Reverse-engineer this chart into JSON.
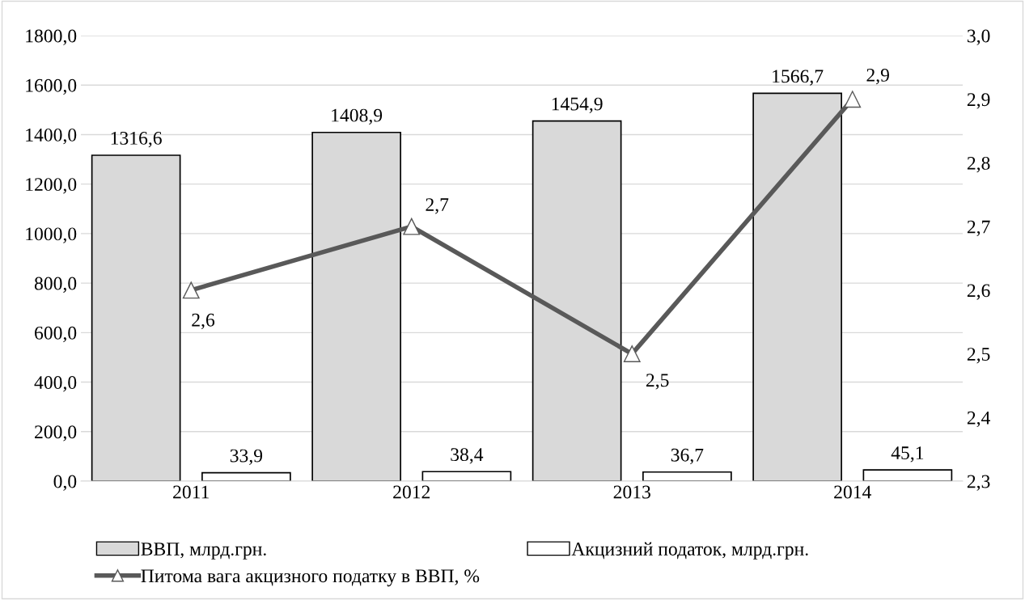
{
  "chart_data": {
    "type": "bar",
    "categories": [
      "2011",
      "2012",
      "2013",
      "2014"
    ],
    "series": [
      {
        "name": "ВВП, млрд.грн.",
        "color": "#d9d9d9",
        "values": [
          1316.6,
          1408.9,
          1454.9,
          1566.7
        ],
        "value_labels": [
          "1316,6",
          "1408,9",
          "1454,9",
          "1566,7"
        ]
      },
      {
        "name": "Акцизний податок, млрд.грн.",
        "color": "#ffffff",
        "values": [
          33.9,
          38.4,
          36.7,
          45.1
        ],
        "value_labels": [
          "33,9",
          "38,4",
          "36,7",
          "45,1"
        ]
      },
      {
        "name": "Питома вага акцизного податку в ВВП, %",
        "type": "line",
        "axis": "y2",
        "color": "#595959",
        "values": [
          2.6,
          2.7,
          2.5,
          2.9
        ],
        "value_labels": [
          "2,6",
          "2,7",
          "2,5",
          "2,9"
        ],
        "marker": "triangle"
      }
    ],
    "ylim": [
      0,
      1800
    ],
    "yticks": [
      {
        "value": 0,
        "label": "0,0"
      },
      {
        "value": 200,
        "label": "200,0"
      },
      {
        "value": 400,
        "label": "400,0"
      },
      {
        "value": 600,
        "label": "600,0"
      },
      {
        "value": 800,
        "label": "800,0"
      },
      {
        "value": 1000,
        "label": "1000,0"
      },
      {
        "value": 1200,
        "label": "1200,0"
      },
      {
        "value": 1400,
        "label": "1400,0"
      },
      {
        "value": 1600,
        "label": "1600,0"
      },
      {
        "value": 1800,
        "label": "1800,0"
      }
    ],
    "y2lim": [
      2.3,
      3.0
    ],
    "y2ticks": [
      {
        "value": 2.3,
        "label": "2,3"
      },
      {
        "value": 2.4,
        "label": "2,4"
      },
      {
        "value": 2.5,
        "label": "2,5"
      },
      {
        "value": 2.6,
        "label": "2,6"
      },
      {
        "value": 2.7,
        "label": "2,7"
      },
      {
        "value": 2.8,
        "label": "2,8"
      },
      {
        "value": 2.9,
        "label": "2,9"
      },
      {
        "value": 3.0,
        "label": "3,0"
      }
    ],
    "grid": "y",
    "legend": "bottom"
  }
}
